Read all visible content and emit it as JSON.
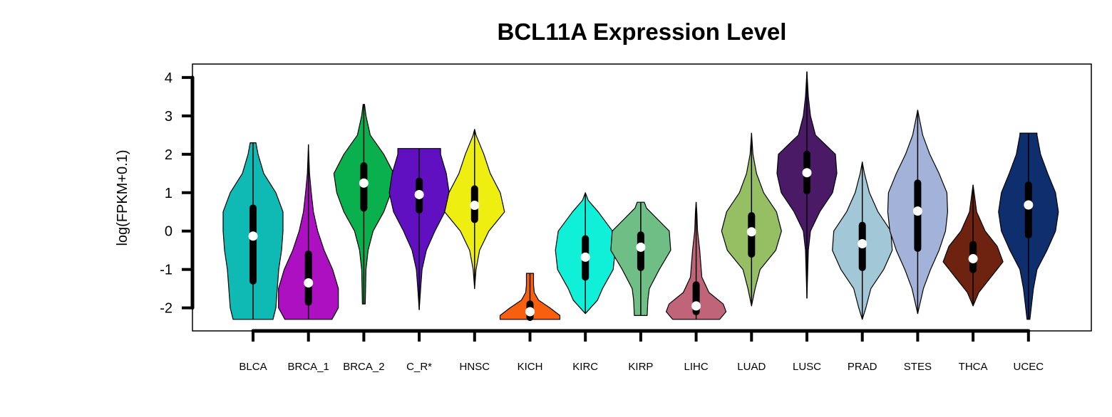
{
  "chart_data": {
    "type": "violin",
    "title": "BCL11A Expression Level",
    "xlabel": "",
    "ylabel": "log(FPKM+0.1)",
    "ylim": [
      -2.6,
      4.35
    ],
    "yticks": [
      -2,
      -1,
      0,
      1,
      2,
      3,
      4
    ],
    "grid": false,
    "legend": "none",
    "categories": [
      "BLCA",
      "BRCA_1",
      "BRCA_2",
      "C_R*",
      "HNSC",
      "KICH",
      "KIRC",
      "KIRP",
      "LIHC",
      "LUAD",
      "LUSC",
      "PRAD",
      "STES",
      "THCA",
      "UCEC"
    ],
    "series": [
      {
        "label": "BLCA",
        "color": "#10BAB4",
        "min": -2.3,
        "max": 2.3,
        "q1": -1.3,
        "median": -0.13,
        "q3": 0.6,
        "profile": [
          [
            -2.3,
            0.28
          ],
          [
            -2.0,
            0.32
          ],
          [
            -1.5,
            0.34
          ],
          [
            -1.0,
            0.36
          ],
          [
            -0.5,
            0.4
          ],
          [
            0.0,
            0.42
          ],
          [
            0.5,
            0.42
          ],
          [
            1.0,
            0.32
          ],
          [
            1.5,
            0.15
          ],
          [
            2.0,
            0.07
          ],
          [
            2.3,
            0.04
          ]
        ]
      },
      {
        "label": "BRCA_1",
        "color": "#AC10C0",
        "min": -2.3,
        "max": 2.25,
        "q1": -1.85,
        "median": -1.35,
        "q3": -0.6,
        "profile": [
          [
            -2.3,
            0.33
          ],
          [
            -2.0,
            0.42
          ],
          [
            -1.5,
            0.42
          ],
          [
            -1.0,
            0.34
          ],
          [
            -0.5,
            0.22
          ],
          [
            0.0,
            0.13
          ],
          [
            0.5,
            0.07
          ],
          [
            1.0,
            0.04
          ],
          [
            1.5,
            0.015
          ],
          [
            2.0,
            0.005
          ],
          [
            2.25,
            0.0
          ]
        ]
      },
      {
        "label": "BRCA_2",
        "color": "#0BB04E",
        "min": -1.9,
        "max": 3.3,
        "q1": 0.6,
        "median": 1.25,
        "q3": 1.7,
        "profile": [
          [
            -1.9,
            0.02
          ],
          [
            -1.0,
            0.03
          ],
          [
            -0.5,
            0.06
          ],
          [
            0.0,
            0.13
          ],
          [
            0.5,
            0.28
          ],
          [
            1.0,
            0.38
          ],
          [
            1.5,
            0.42
          ],
          [
            2.0,
            0.28
          ],
          [
            2.5,
            0.09
          ],
          [
            3.0,
            0.03
          ],
          [
            3.3,
            0.01
          ]
        ]
      },
      {
        "label": "C_R*",
        "color": "#6010C0",
        "min": -2.05,
        "max": 2.15,
        "q1": 0.55,
        "median": 0.95,
        "q3": 1.3,
        "profile": [
          [
            -2.05,
            0.0
          ],
          [
            -1.5,
            0.02
          ],
          [
            -1.0,
            0.04
          ],
          [
            -0.5,
            0.1
          ],
          [
            0.0,
            0.22
          ],
          [
            0.5,
            0.36
          ],
          [
            1.0,
            0.42
          ],
          [
            1.5,
            0.38
          ],
          [
            2.0,
            0.3
          ],
          [
            2.15,
            0.3
          ]
        ]
      },
      {
        "label": "HNSC",
        "color": "#EEEE10",
        "min": -1.5,
        "max": 2.65,
        "q1": 0.3,
        "median": 0.67,
        "q3": 1.1,
        "profile": [
          [
            -1.5,
            0.0
          ],
          [
            -1.0,
            0.02
          ],
          [
            -0.5,
            0.07
          ],
          [
            0.0,
            0.2
          ],
          [
            0.5,
            0.42
          ],
          [
            1.0,
            0.36
          ],
          [
            1.5,
            0.22
          ],
          [
            2.0,
            0.13
          ],
          [
            2.5,
            0.02
          ],
          [
            2.65,
            0.0
          ]
        ]
      },
      {
        "label": "KICH",
        "color": "#F86010",
        "min": -2.3,
        "max": -1.1,
        "q1": -2.25,
        "median": -2.1,
        "q3": -1.9,
        "profile": [
          [
            -2.3,
            0.42
          ],
          [
            -2.2,
            0.42
          ],
          [
            -2.0,
            0.28
          ],
          [
            -1.8,
            0.12
          ],
          [
            -1.6,
            0.06
          ],
          [
            -1.4,
            0.05
          ],
          [
            -1.2,
            0.05
          ],
          [
            -1.1,
            0.05
          ]
        ]
      },
      {
        "label": "KIRC",
        "color": "#10F0D8",
        "min": -2.15,
        "max": 1.0,
        "q1": -1.2,
        "median": -0.68,
        "q3": -0.2,
        "profile": [
          [
            -2.15,
            0.0
          ],
          [
            -1.8,
            0.17
          ],
          [
            -1.5,
            0.24
          ],
          [
            -1.0,
            0.39
          ],
          [
            -0.5,
            0.42
          ],
          [
            0.0,
            0.38
          ],
          [
            0.5,
            0.18
          ],
          [
            0.8,
            0.04
          ],
          [
            1.0,
            0.0
          ]
        ]
      },
      {
        "label": "KIRP",
        "color": "#6EBE86",
        "min": -2.2,
        "max": 0.75,
        "q1": -0.95,
        "median": -0.42,
        "q3": -0.1,
        "profile": [
          [
            -2.2,
            0.09
          ],
          [
            -1.8,
            0.1
          ],
          [
            -1.5,
            0.12
          ],
          [
            -1.0,
            0.26
          ],
          [
            -0.5,
            0.42
          ],
          [
            0.0,
            0.4
          ],
          [
            0.3,
            0.24
          ],
          [
            0.6,
            0.08
          ],
          [
            0.75,
            0.05
          ]
        ]
      },
      {
        "label": "LIHC",
        "color": "#C0647A",
        "min": -2.3,
        "max": 0.75,
        "q1": -2.1,
        "median": -1.95,
        "q3": -1.4,
        "profile": [
          [
            -2.3,
            0.33
          ],
          [
            -2.1,
            0.42
          ],
          [
            -1.9,
            0.38
          ],
          [
            -1.6,
            0.18
          ],
          [
            -1.2,
            0.08
          ],
          [
            -0.5,
            0.05
          ],
          [
            0.0,
            0.02
          ],
          [
            0.5,
            0.01
          ],
          [
            0.75,
            0.0
          ]
        ]
      },
      {
        "label": "LUAD",
        "color": "#96BE62",
        "min": -1.95,
        "max": 2.55,
        "q1": -0.6,
        "median": -0.02,
        "q3": 0.4,
        "profile": [
          [
            -1.95,
            0.0
          ],
          [
            -1.5,
            0.05
          ],
          [
            -1.0,
            0.12
          ],
          [
            -0.5,
            0.34
          ],
          [
            0.0,
            0.42
          ],
          [
            0.5,
            0.35
          ],
          [
            1.0,
            0.17
          ],
          [
            1.5,
            0.07
          ],
          [
            2.0,
            0.02
          ],
          [
            2.55,
            0.0
          ]
        ]
      },
      {
        "label": "LUSC",
        "color": "#4A1A66",
        "min": -1.75,
        "max": 4.15,
        "q1": 1.05,
        "median": 1.52,
        "q3": 2.0,
        "profile": [
          [
            -1.75,
            0.0
          ],
          [
            -0.5,
            0.02
          ],
          [
            0.0,
            0.05
          ],
          [
            0.5,
            0.18
          ],
          [
            1.0,
            0.36
          ],
          [
            1.5,
            0.42
          ],
          [
            2.0,
            0.4
          ],
          [
            2.5,
            0.12
          ],
          [
            3.0,
            0.05
          ],
          [
            3.5,
            0.02
          ],
          [
            4.15,
            0.0
          ]
        ]
      },
      {
        "label": "PRAD",
        "color": "#A2C8D8",
        "min": -2.3,
        "max": 1.8,
        "q1": -0.95,
        "median": -0.33,
        "q3": 0.15,
        "profile": [
          [
            -2.3,
            0.0
          ],
          [
            -2.0,
            0.05
          ],
          [
            -1.5,
            0.12
          ],
          [
            -1.0,
            0.3
          ],
          [
            -0.5,
            0.42
          ],
          [
            0.0,
            0.4
          ],
          [
            0.5,
            0.22
          ],
          [
            1.0,
            0.1
          ],
          [
            1.5,
            0.03
          ],
          [
            1.8,
            0.0
          ]
        ]
      },
      {
        "label": "STES",
        "color": "#A2B2D8",
        "min": -2.15,
        "max": 3.15,
        "q1": -0.45,
        "median": 0.52,
        "q3": 1.25,
        "profile": [
          [
            -2.15,
            0.0
          ],
          [
            -1.5,
            0.08
          ],
          [
            -1.0,
            0.18
          ],
          [
            -0.5,
            0.3
          ],
          [
            0.0,
            0.39
          ],
          [
            0.5,
            0.42
          ],
          [
            1.0,
            0.41
          ],
          [
            1.5,
            0.3
          ],
          [
            2.0,
            0.17
          ],
          [
            2.5,
            0.07
          ],
          [
            3.15,
            0.0
          ]
        ]
      },
      {
        "label": "THCA",
        "color": "#6E2210",
        "min": -1.95,
        "max": 1.2,
        "q1": -1.0,
        "median": -0.72,
        "q3": -0.35,
        "profile": [
          [
            -1.95,
            0.0
          ],
          [
            -1.6,
            0.08
          ],
          [
            -1.2,
            0.25
          ],
          [
            -0.8,
            0.42
          ],
          [
            -0.4,
            0.34
          ],
          [
            0.0,
            0.17
          ],
          [
            0.5,
            0.05
          ],
          [
            1.0,
            0.015
          ],
          [
            1.2,
            0.0
          ]
        ]
      },
      {
        "label": "UCEC",
        "color": "#0E2E6E",
        "min": -2.3,
        "max": 2.55,
        "q1": -0.1,
        "median": 0.68,
        "q3": 1.2,
        "profile": [
          [
            -2.3,
            0.02
          ],
          [
            -1.5,
            0.07
          ],
          [
            -1.0,
            0.12
          ],
          [
            -0.5,
            0.26
          ],
          [
            0.0,
            0.38
          ],
          [
            0.5,
            0.42
          ],
          [
            1.0,
            0.38
          ],
          [
            1.5,
            0.27
          ],
          [
            2.0,
            0.17
          ],
          [
            2.5,
            0.12
          ],
          [
            2.55,
            0.12
          ]
        ]
      }
    ]
  }
}
